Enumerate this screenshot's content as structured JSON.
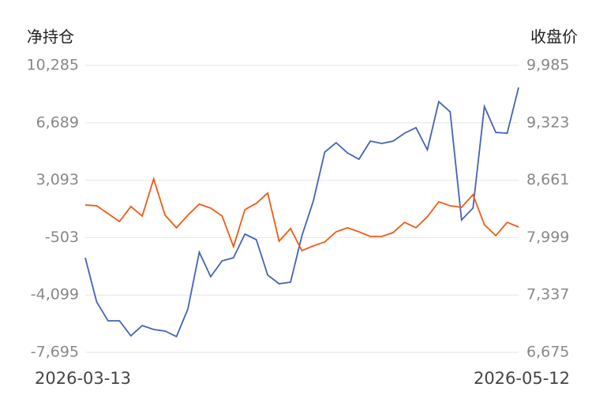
{
  "chart_data": {
    "type": "line",
    "y_label": "净持仓",
    "y2_label": "收盘价",
    "categories": [
      "2026-03-13",
      null,
      null,
      null,
      null,
      null,
      null,
      null,
      null,
      null,
      null,
      null,
      null,
      null,
      null,
      null,
      null,
      null,
      null,
      null,
      null,
      null,
      null,
      null,
      null,
      null,
      null,
      null,
      null,
      null,
      null,
      null,
      null,
      null,
      null,
      null,
      null,
      null,
      "2026-05-12"
    ],
    "series": [
      {
        "name": "净持仓",
        "color": "#4463b8",
        "axis": "y",
        "values": [
          -1768,
          -4534,
          -5719,
          -5719,
          -6658,
          -6016,
          -6263,
          -6361,
          -6707,
          -4978,
          -1422,
          -2953,
          -1965,
          -1768,
          -286,
          -632,
          -2854,
          -3398,
          -3299,
          -385,
          1789,
          4851,
          5444,
          4802,
          4407,
          5543,
          5395,
          5543,
          6037,
          6383,
          5000,
          8013,
          7371,
          603,
          1344,
          7716,
          6086,
          6037,
          8902
        ]
      },
      {
        "name": "收盘价",
        "color": "#f05a14",
        "axis": "y2",
        "values": [
          8375,
          8366,
          8275,
          8184,
          8357,
          8248,
          8676,
          8257,
          8112,
          8257,
          8385,
          8339,
          8248,
          7894,
          8321,
          8394,
          8512,
          7957,
          8103,
          7848,
          7903,
          7948,
          8066,
          8112,
          8066,
          8012,
          8012,
          8057,
          8175,
          8112,
          8239,
          8412,
          8366,
          8348,
          8494,
          8148,
          8021,
          8175,
          8121
        ]
      }
    ],
    "ylim": [
      -7695,
      10285
    ],
    "yticks": [
      {
        "value": 10285,
        "label": "10,285"
      },
      {
        "value": 6689,
        "label": "6,689"
      },
      {
        "value": 3093,
        "label": "3,093"
      },
      -503,
      {
        "value": -4099,
        "label": "-4,099"
      },
      {
        "value": -7695,
        "label": "-7,695"
      }
    ],
    "y2lim": [
      6675,
      9985
    ],
    "y2ticks": [
      {
        "value": 9985,
        "label": "9,985"
      },
      {
        "value": 9323,
        "label": "9,323"
      },
      {
        "value": 8661,
        "label": "8,661"
      },
      {
        "value": 7999,
        "label": "7,999"
      },
      {
        "value": 7337,
        "label": "7,337"
      },
      {
        "value": 6675,
        "label": "6,675"
      }
    ],
    "grid": true
  }
}
